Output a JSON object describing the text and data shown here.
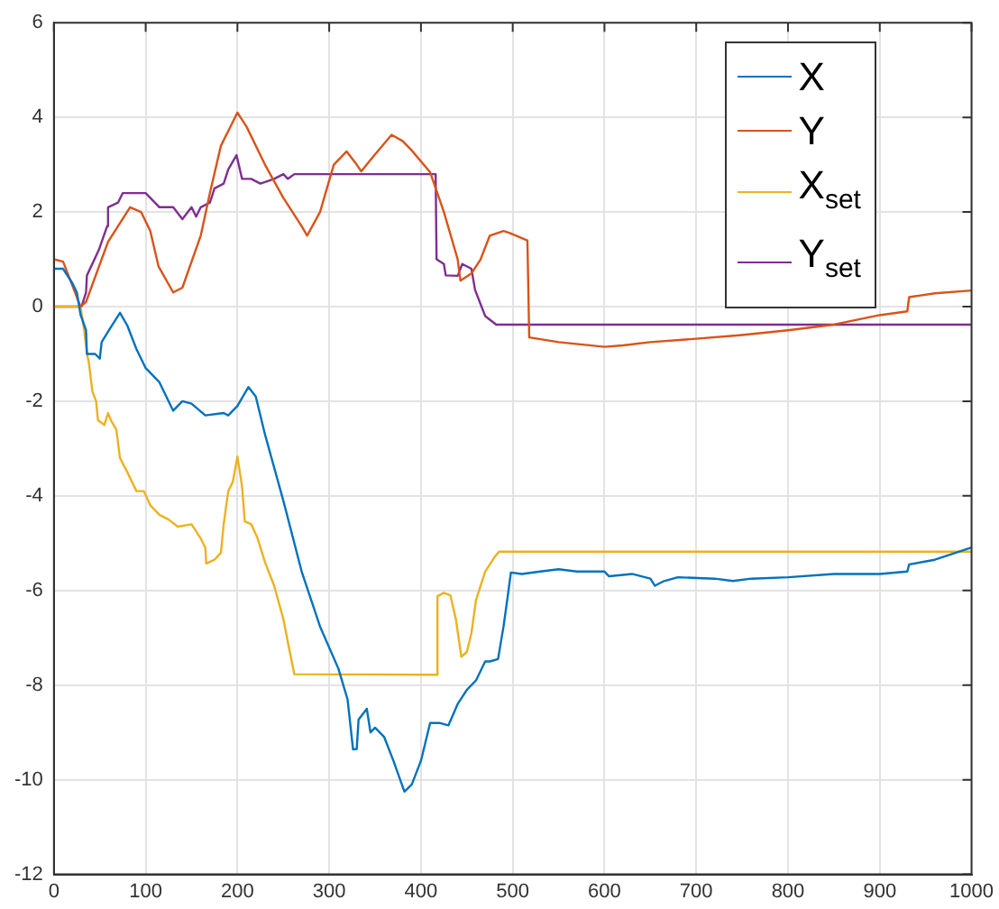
{
  "chart_data": {
    "type": "line",
    "xlim": [
      0,
      1000
    ],
    "xticks": [
      0,
      100,
      200,
      300,
      400,
      500,
      600,
      700,
      800,
      900,
      1000
    ],
    "ylim": [
      -12,
      6
    ],
    "yticks": [
      -12,
      -10,
      -8,
      -6,
      -4,
      -2,
      0,
      2,
      4,
      6
    ],
    "grid": true,
    "legend": "top right",
    "marker": "none",
    "line_style": "solid",
    "series": [
      {
        "name": "X",
        "color": "#0072bd",
        "x": [
          0,
          10,
          20,
          25,
          29,
          35,
          36,
          45,
          50,
          52,
          60,
          72,
          80,
          90,
          100,
          115,
          125,
          130,
          140,
          150,
          165,
          185,
          190,
          200,
          212,
          220,
          230,
          250,
          270,
          290,
          310,
          320,
          326,
          330,
          332,
          341,
          345,
          350,
          360,
          370,
          382,
          390,
          400,
          410,
          420,
          430,
          440,
          450,
          460,
          470,
          475,
          484,
          490,
          495,
          498,
          510,
          530,
          550,
          570,
          600,
          605,
          630,
          650,
          655,
          665,
          680,
          720,
          740,
          760,
          800,
          850,
          900,
          930,
          932,
          960,
          1000
        ],
        "values": [
          0.8,
          0.8,
          0.5,
          0.3,
          -0.17,
          -0.5,
          -1.0,
          -1.0,
          -1.1,
          -0.75,
          -0.5,
          -0.13,
          -0.4,
          -0.9,
          -1.3,
          -1.6,
          -2.0,
          -2.2,
          -2.0,
          -2.05,
          -2.3,
          -2.25,
          -2.3,
          -2.1,
          -1.7,
          -1.9,
          -2.7,
          -4.1,
          -5.6,
          -6.76,
          -7.65,
          -8.3,
          -9.36,
          -9.35,
          -8.73,
          -8.5,
          -9.0,
          -8.9,
          -9.1,
          -9.6,
          -10.25,
          -10.1,
          -9.6,
          -8.8,
          -8.8,
          -8.85,
          -8.4,
          -8.1,
          -7.9,
          -7.5,
          -7.5,
          -7.45,
          -6.76,
          -6.06,
          -5.62,
          -5.65,
          -5.6,
          -5.55,
          -5.6,
          -5.6,
          -5.7,
          -5.65,
          -5.75,
          -5.9,
          -5.8,
          -5.72,
          -5.75,
          -5.8,
          -5.75,
          -5.72,
          -5.65,
          -5.65,
          -5.6,
          -5.45,
          -5.35,
          -5.09
        ]
      },
      {
        "name": "Y",
        "color": "#d95319",
        "x": [
          0,
          10,
          29,
          35,
          59,
          83,
          95,
          105,
          114,
          130,
          140,
          160,
          170,
          182,
          200,
          210,
          230,
          250,
          270,
          276,
          290,
          305,
          319,
          330,
          335,
          345,
          368,
          380,
          390,
          410,
          425,
          440,
          443,
          455,
          465,
          475,
          490,
          496,
          516,
          518,
          550,
          600,
          620,
          650,
          700,
          750,
          800,
          850,
          900,
          930,
          932,
          960,
          1000
        ],
        "values": [
          1.0,
          0.95,
          0.0,
          0.1,
          1.37,
          2.1,
          2.0,
          1.6,
          0.85,
          0.3,
          0.4,
          1.5,
          2.4,
          3.4,
          4.1,
          3.8,
          3.0,
          2.3,
          1.7,
          1.5,
          2.0,
          3.0,
          3.28,
          3.0,
          2.86,
          3.1,
          3.63,
          3.5,
          3.3,
          2.84,
          2.0,
          1.0,
          0.55,
          0.7,
          1.0,
          1.5,
          1.6,
          1.56,
          1.4,
          -0.65,
          -0.75,
          -0.85,
          -0.82,
          -0.75,
          -0.68,
          -0.6,
          -0.5,
          -0.38,
          -0.18,
          -0.1,
          0.2,
          0.28,
          0.34
        ]
      },
      {
        "name": "X$_{set}$",
        "color": "#edb120",
        "x": [
          0,
          29,
          33,
          36,
          38,
          42,
          46,
          48,
          55,
          59,
          62,
          68,
          72,
          80,
          90,
          98,
          105,
          115,
          125,
          135,
          150,
          160,
          165,
          166,
          175,
          182,
          185,
          190,
          195,
          200,
          205,
          208,
          215,
          222,
          230,
          240,
          250,
          255,
          262,
          417,
          418,
          425,
          432,
          438,
          444,
          450,
          455,
          460,
          465,
          470,
          480,
          485,
          1000
        ],
        "values": [
          0,
          0,
          -0.5,
          -1.0,
          -1.17,
          -1.8,
          -2.0,
          -2.4,
          -2.5,
          -2.25,
          -2.4,
          -2.6,
          -3.2,
          -3.5,
          -3.9,
          -3.9,
          -4.2,
          -4.4,
          -4.5,
          -4.65,
          -4.6,
          -4.9,
          -5.1,
          -5.43,
          -5.35,
          -5.2,
          -4.6,
          -3.9,
          -3.7,
          -3.17,
          -3.8,
          -4.54,
          -4.6,
          -4.9,
          -5.4,
          -5.9,
          -6.6,
          -7.1,
          -7.77,
          -7.78,
          -6.12,
          -6.05,
          -6.1,
          -6.6,
          -7.4,
          -7.3,
          -6.9,
          -6.2,
          -5.9,
          -5.6,
          -5.3,
          -5.18,
          -5.18
        ]
      },
      {
        "name": "Y$_{set}$",
        "color": "#7e2f8e",
        "x": [
          0,
          30,
          35,
          36,
          49,
          58,
          59,
          70,
          75,
          100,
          105,
          115,
          130,
          140,
          150,
          155,
          160,
          170,
          175,
          185,
          190,
          199,
          205,
          215,
          225,
          240,
          250,
          255,
          262,
          416,
          417,
          425,
          427,
          440,
          445,
          455,
          459,
          470,
          482,
          1000
        ],
        "values": [
          0,
          0,
          0.3,
          0.66,
          1.2,
          1.7,
          2.1,
          2.2,
          2.4,
          2.4,
          2.3,
          2.1,
          2.1,
          1.85,
          2.1,
          1.9,
          2.1,
          2.2,
          2.5,
          2.6,
          2.9,
          3.2,
          2.7,
          2.7,
          2.6,
          2.7,
          2.8,
          2.7,
          2.8,
          2.8,
          1.0,
          0.9,
          0.66,
          0.65,
          0.9,
          0.8,
          0.35,
          -0.2,
          -0.38,
          -0.38
        ]
      }
    ]
  }
}
